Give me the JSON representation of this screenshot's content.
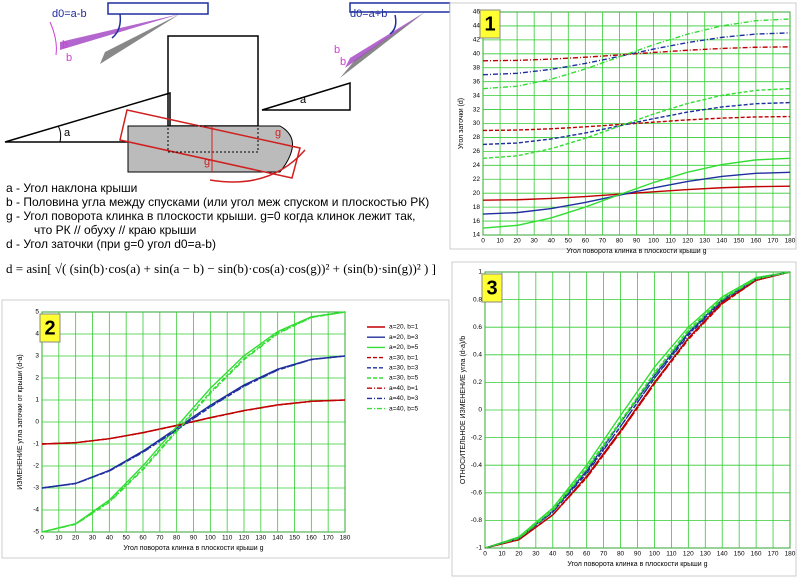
{
  "diagram": {
    "left_label": "d0=a-b",
    "left_b1": "b",
    "left_b2": "b",
    "left_a": "a",
    "right_label": "d0=a+b",
    "right_b1": "b",
    "right_b2": "b",
    "right_a": "a",
    "mid_g1": "g",
    "mid_g2": "g"
  },
  "definitions": [
    "a - Угол наклона крыши",
    "b - Половина угла между спусками (или угол меж спуском и плоскостью РК)",
    "g - Угол поворота клинка в плоскости крыши. g=0 когда клинок лежит так,",
    "что РК // обуху // краю крыши",
    "d - Угол заточки (при g=0 угол d0=a-b)"
  ],
  "formula": "d = asin[ √( (sin(b)·cos(a) + sin(a − b) − sin(b)·cos(a)·cos(g))² + (sin(b)·sin(g))² ) ]",
  "chart_data": [
    {
      "type": "line",
      "badge": "1",
      "xlabel": "Угол поворота клинка в плоскости крыши g",
      "ylabel": "Угол заточки (d)",
      "x": [
        0,
        20,
        40,
        60,
        80,
        100,
        120,
        140,
        160,
        180
      ],
      "xlim": [
        0,
        180
      ],
      "xticks": [
        0,
        10,
        20,
        30,
        40,
        50,
        60,
        70,
        80,
        90,
        100,
        110,
        120,
        130,
        140,
        150,
        160,
        170,
        180
      ],
      "ylim": [
        14,
        46
      ],
      "yticks": [
        14,
        16,
        18,
        20,
        22,
        24,
        26,
        28,
        30,
        32,
        34,
        36,
        38,
        40,
        42,
        44,
        46
      ],
      "grid": true,
      "grid_color": "#33cc33",
      "series": [
        {
          "color": "#c00000",
          "dash": "solid",
          "values": [
            19,
            19.06,
            19.25,
            19.52,
            19.85,
            20.2,
            20.52,
            20.78,
            20.94,
            21
          ]
        },
        {
          "color": "#1f2f9f",
          "dash": "solid",
          "values": [
            17,
            17.21,
            17.8,
            18.68,
            19.72,
            20.76,
            21.68,
            22.4,
            22.85,
            23
          ]
        },
        {
          "color": "#33dd33",
          "dash": "solid",
          "values": [
            15,
            15.38,
            16.45,
            18.01,
            19.79,
            21.53,
            23.01,
            24.11,
            24.78,
            25
          ]
        },
        {
          "color": "#c00000",
          "dash": "dash",
          "values": [
            29,
            29.06,
            29.24,
            29.52,
            29.85,
            30.19,
            30.52,
            30.77,
            30.94,
            31
          ]
        },
        {
          "color": "#1f2f9f",
          "dash": "dash",
          "values": [
            27,
            27.2,
            27.78,
            28.64,
            29.66,
            30.7,
            31.64,
            32.37,
            32.84,
            33
          ]
        },
        {
          "color": "#33dd33",
          "dash": "dash",
          "values": [
            25,
            25.36,
            26.38,
            27.88,
            29.62,
            31.36,
            32.88,
            34.04,
            34.76,
            35
          ]
        },
        {
          "color": "#c00000",
          "dash": "dashdot",
          "values": [
            39,
            39.06,
            39.24,
            39.51,
            39.84,
            40.19,
            40.51,
            40.77,
            40.94,
            41
          ]
        },
        {
          "color": "#1f2f9f",
          "dash": "dashdot",
          "values": [
            37,
            37.2,
            37.77,
            38.62,
            39.63,
            40.68,
            41.62,
            42.36,
            42.84,
            43
          ]
        },
        {
          "color": "#33dd33",
          "dash": "dashdot",
          "values": [
            35,
            35.35,
            36.35,
            37.83,
            39.56,
            41.3,
            42.83,
            44.01,
            44.75,
            45
          ]
        }
      ]
    },
    {
      "type": "line",
      "badge": "2",
      "xlabel": "Угол поворота клинка в плоскости крыши g",
      "ylabel": "ИЗМЕНЕНИЕ угла заточки от крыши (d-a)",
      "x": [
        0,
        20,
        40,
        60,
        80,
        100,
        120,
        140,
        160,
        180
      ],
      "xlim": [
        0,
        180
      ],
      "xticks": [
        0,
        10,
        20,
        30,
        40,
        50,
        60,
        70,
        80,
        90,
        100,
        110,
        120,
        130,
        140,
        150,
        160,
        170,
        180
      ],
      "ylim": [
        -5,
        5
      ],
      "yticks": [
        -5,
        -4,
        -3,
        -2,
        -1,
        0,
        1,
        2,
        3,
        4,
        5
      ],
      "grid": true,
      "grid_color": "#33cc33",
      "legend": "right",
      "series": [
        {
          "name": "a=20, b=1",
          "color": "#c00000",
          "dash": "solid",
          "values": [
            -1,
            -0.94,
            -0.76,
            -0.48,
            -0.15,
            0.2,
            0.52,
            0.78,
            0.94,
            1
          ]
        },
        {
          "name": "a=20, b=3",
          "color": "#1f2f9f",
          "dash": "solid",
          "values": [
            -3,
            -2.79,
            -2.2,
            -1.32,
            -0.28,
            0.76,
            1.68,
            2.4,
            2.85,
            3
          ]
        },
        {
          "name": "a=20, b=5",
          "color": "#33dd33",
          "dash": "solid",
          "values": [
            -5,
            -4.62,
            -3.55,
            -1.99,
            -0.21,
            1.53,
            3.01,
            4.11,
            4.78,
            5
          ]
        },
        {
          "name": "a=30, b=1",
          "color": "#c00000",
          "dash": "dash",
          "values": [
            -1,
            -0.94,
            -0.76,
            -0.49,
            -0.16,
            0.19,
            0.52,
            0.77,
            0.94,
            1
          ]
        },
        {
          "name": "a=30, b=3",
          "color": "#1f2f9f",
          "dash": "dash",
          "values": [
            -3,
            -2.8,
            -2.22,
            -1.36,
            -0.35,
            0.7,
            1.64,
            2.37,
            2.84,
            3
          ]
        },
        {
          "name": "a=30, b=5",
          "color": "#33dd33",
          "dash": "dash",
          "values": [
            -5,
            -4.64,
            -3.62,
            -2.12,
            -0.38,
            1.36,
            2.88,
            4.04,
            4.76,
            5
          ]
        },
        {
          "name": "a=40, b=1",
          "color": "#c00000",
          "dash": "dashdot",
          "values": [
            -1,
            -0.94,
            -0.76,
            -0.49,
            -0.16,
            0.19,
            0.51,
            0.77,
            0.94,
            1
          ]
        },
        {
          "name": "a=40, b=3",
          "color": "#1f2f9f",
          "dash": "dashdot",
          "values": [
            -3,
            -2.8,
            -2.23,
            -1.38,
            -0.37,
            0.68,
            1.62,
            2.36,
            2.84,
            3
          ]
        },
        {
          "name": "a=40, b=5",
          "color": "#33dd33",
          "dash": "dashdot",
          "values": [
            -5,
            -4.65,
            -3.65,
            -2.17,
            -0.44,
            1.3,
            2.83,
            4.01,
            4.75,
            5
          ]
        }
      ]
    },
    {
      "type": "line",
      "badge": "3",
      "xlabel": "Угол поворота клинка в плоскости крыши g",
      "ylabel": "ОТНОСИТЕЛЬНОЕ ИЗМЕНЕНИЕ угла (d-a)/b",
      "x": [
        0,
        20,
        40,
        60,
        80,
        100,
        120,
        140,
        160,
        180
      ],
      "xlim": [
        0,
        180
      ],
      "xticks": [
        0,
        10,
        20,
        30,
        40,
        50,
        60,
        70,
        80,
        90,
        100,
        110,
        120,
        130,
        140,
        150,
        160,
        170,
        180
      ],
      "ylim": [
        -1,
        1
      ],
      "yticks": [
        -1,
        -0.8,
        -0.6,
        -0.4,
        -0.2,
        0,
        0.2,
        0.4,
        0.6,
        0.8,
        1
      ],
      "grid": true,
      "grid_color": "#33cc33",
      "series": [
        {
          "color": "#c00000",
          "dash": "solid",
          "values": [
            -1,
            -0.94,
            -0.76,
            -0.48,
            -0.15,
            0.2,
            0.52,
            0.78,
            0.94,
            1
          ]
        },
        {
          "color": "#1f2f9f",
          "dash": "solid",
          "values": [
            -1,
            -0.93,
            -0.73,
            -0.44,
            -0.09,
            0.25,
            0.56,
            0.8,
            0.95,
            1
          ]
        },
        {
          "color": "#33dd33",
          "dash": "solid",
          "values": [
            -1,
            -0.92,
            -0.71,
            -0.4,
            -0.04,
            0.31,
            0.6,
            0.82,
            0.96,
            1
          ]
        },
        {
          "color": "#c00000",
          "dash": "dash",
          "values": [
            -1,
            -0.94,
            -0.76,
            -0.49,
            -0.16,
            0.19,
            0.52,
            0.77,
            0.94,
            1
          ]
        },
        {
          "color": "#1f2f9f",
          "dash": "dash",
          "values": [
            -1,
            -0.93,
            -0.74,
            -0.45,
            -0.12,
            0.23,
            0.55,
            0.79,
            0.95,
            1
          ]
        },
        {
          "color": "#33dd33",
          "dash": "dash",
          "values": [
            -1,
            -0.93,
            -0.72,
            -0.42,
            -0.08,
            0.27,
            0.58,
            0.81,
            0.95,
            1
          ]
        },
        {
          "color": "#c00000",
          "dash": "dashdot",
          "values": [
            -1,
            -0.94,
            -0.76,
            -0.49,
            -0.16,
            0.19,
            0.51,
            0.77,
            0.94,
            1
          ]
        },
        {
          "color": "#1f2f9f",
          "dash": "dashdot",
          "values": [
            -1,
            -0.93,
            -0.74,
            -0.46,
            -0.12,
            0.23,
            0.54,
            0.79,
            0.95,
            1
          ]
        },
        {
          "color": "#33dd33",
          "dash": "dashdot",
          "values": [
            -1,
            -0.93,
            -0.73,
            -0.43,
            -0.09,
            0.26,
            0.57,
            0.8,
            0.95,
            1
          ]
        }
      ]
    }
  ]
}
